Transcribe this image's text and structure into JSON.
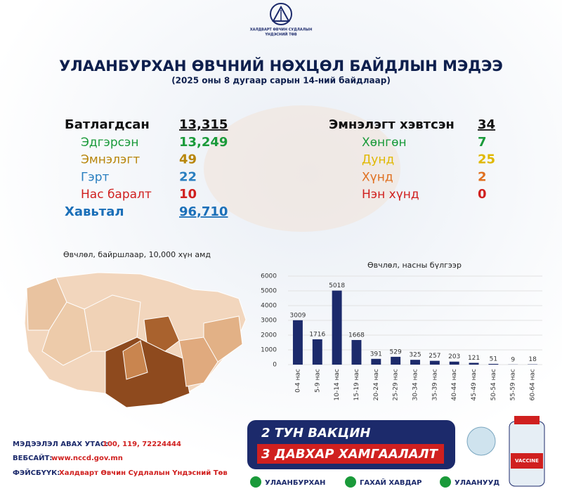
{
  "header": {
    "logo_lines": [
      "ХАЛДВАРТ ӨВЧИН СУДЛАЛЫН",
      "ҮНДЭСНИЙ ТӨВ"
    ],
    "title": "УЛААНБУРХАН ӨВЧНИЙ НӨХЦӨЛ БАЙДЛЫН МЭДЭЭ",
    "subtitle": "(2025 оны 8 дугаар сарын 14-ний байдлаар)"
  },
  "stats_left": [
    {
      "label": "Батлагдсан",
      "value": "13,315"
    },
    {
      "label": "Эдгэрсэн",
      "value": "13,249"
    },
    {
      "label": "Эмнэлэгт",
      "value": "49"
    },
    {
      "label": "Гэрт",
      "value": "22"
    },
    {
      "label": "Нас баралт",
      "value": "10"
    },
    {
      "label": "Хавьтал",
      "value": "96,710"
    }
  ],
  "stats_right": [
    {
      "label": "Эмнэлэгт хэвтсэн",
      "value": "34"
    },
    {
      "label": "Хөнгөн",
      "value": "7"
    },
    {
      "label": "Дунд",
      "value": "25"
    },
    {
      "label": "Хүнд",
      "value": "2"
    },
    {
      "label": "Нэн хүнд",
      "value": "0"
    }
  ],
  "map": {
    "title": "Өвчлөл, байршлаар, 10,000 хүн амд"
  },
  "chart_data": {
    "type": "bar",
    "title": "Өвчлөл, насны бүлгээр",
    "categories": [
      "0-4 нас",
      "5-9 нас",
      "10-14 нас",
      "15-19 нас",
      "20-24 нас",
      "25-29 нас",
      "30-34 нас",
      "35-39 нас",
      "40-44 нас",
      "45-49 нас",
      "50-54 нас",
      "55-59 нас",
      "60-64 нас"
    ],
    "values": [
      3009,
      1716,
      5018,
      1668,
      391,
      529,
      325,
      257,
      203,
      121,
      51,
      9,
      18
    ],
    "color": "#1c2a6b",
    "ylim": [
      0,
      6000
    ],
    "yticks": [
      0,
      1000,
      2000,
      3000,
      4000,
      5000,
      6000
    ],
    "grid": true
  },
  "footer": {
    "phone_label": "МЭДЭЭЛЭЛ АВАХ УТАС:",
    "phone": "100, 119, 72224444",
    "web_label": "ВЕБСАЙТ:",
    "web": "www.nccd.gov.mn",
    "fb_label": "ФЭЙСБҮҮК:",
    "fb": "Халдварт Өвчин Судлалын Үндэсний Төв"
  },
  "banner": {
    "line1": "2 ТУН ВАКЦИН",
    "line2": "3 ДАВХАР ХАМГААЛАЛТ",
    "checks": [
      "УЛААНБУРХАН",
      "ГАХАЙ ХАВДАР",
      "УЛААНУУД"
    ],
    "bottle": "VACCINE"
  }
}
